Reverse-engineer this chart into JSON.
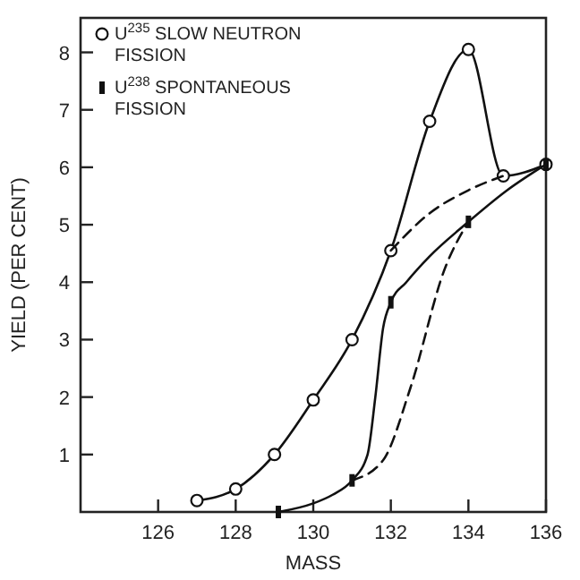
{
  "chart_data": {
    "type": "line",
    "xlabel": "MASS",
    "ylabel": "YIELD (PER CENT)",
    "xlim": [
      124,
      136
    ],
    "ylim": [
      0,
      8.6
    ],
    "xticks": [
      126,
      128,
      130,
      132,
      134,
      136
    ],
    "yticks": [
      1,
      2,
      3,
      4,
      5,
      6,
      7,
      8
    ],
    "grid": false,
    "legend": "top left",
    "series": [
      {
        "name": "U$^{235}$ SLOW NEUTRON FISSION",
        "color": "#111111",
        "marker": "circle",
        "line_style": "solid",
        "x": [
          127,
          128,
          129,
          130,
          131,
          132,
          133,
          134,
          134.9,
          136
        ],
        "values": [
          0.2,
          0.4,
          1.0,
          1.95,
          3.0,
          4.55,
          6.8,
          8.05,
          5.85,
          6.05
        ]
      },
      {
        "color": "#111111",
        "marker": "none",
        "line_style": "solid",
        "x": [
          129.1,
          130,
          130.5,
          131,
          131.4,
          131.6,
          131.8,
          132,
          132.4,
          133,
          134,
          135,
          136
        ],
        "values": [
          0,
          0.15,
          0.3,
          0.55,
          1.0,
          2.0,
          3.2,
          3.65,
          4.0,
          4.45,
          5.05,
          5.6,
          6.05
        ]
      },
      {
        "color": "#111111",
        "marker": "none",
        "line_style": "dashed",
        "x": [
          132,
          133,
          134,
          134.9
        ],
        "values": [
          4.55,
          5.2,
          5.6,
          5.85
        ]
      },
      {
        "color": "#111111",
        "marker": "none",
        "line_style": "dashed",
        "x": [
          131,
          131.8,
          132.5,
          133.4,
          134
        ],
        "values": [
          0.55,
          0.9,
          2.15,
          4.25,
          5.05
        ]
      },
      {
        "name": "U$^{238}$ SPONTANEOUS FISSION",
        "color": "#111111",
        "type": "scatter",
        "marker": "square",
        "x": [
          129.1,
          131,
          132,
          134,
          136
        ],
        "values": [
          0,
          0.55,
          3.65,
          5.05,
          6.05
        ]
      }
    ]
  }
}
